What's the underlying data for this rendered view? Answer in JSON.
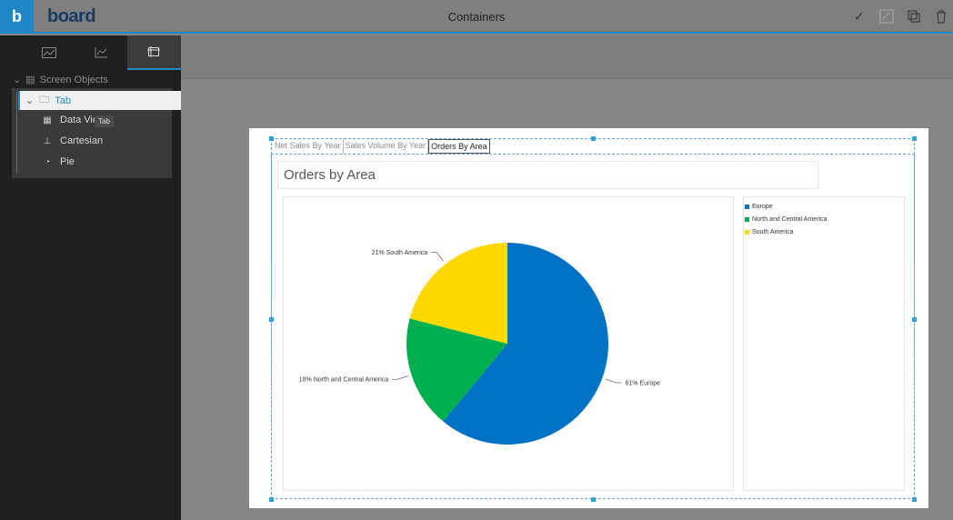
{
  "app": {
    "logo_glyph": "b",
    "brand": "board",
    "title": "Containers"
  },
  "top_actions": [
    "check-icon",
    "edit-grid-icon",
    "copy-icon",
    "trash-icon"
  ],
  "sidebar": {
    "tabs": [
      "layout-icon",
      "chart-layout-icon",
      "container-icon"
    ],
    "tree_root": "Screen Objects",
    "tab_node": "Tab",
    "items": [
      {
        "label": "Data Vie",
        "icon": "table-icon"
      },
      {
        "label": "Cartesian",
        "icon": "axis-icon"
      },
      {
        "label": "Pie",
        "icon": "pie-icon"
      }
    ],
    "tooltip": "Tab"
  },
  "container": {
    "tabs": [
      "Net Sales By Year",
      "Sales Volume By Year",
      "Orders By Area"
    ],
    "active_tab": 2,
    "title": "Orders by Area"
  },
  "chart_data": {
    "type": "pie",
    "categories": [
      "Europe",
      "North and Central America",
      "South America"
    ],
    "values": [
      61,
      18,
      21
    ],
    "colors": [
      "#0072c6",
      "#00b04f",
      "#ffd800"
    ],
    "data_labels": [
      "61% Europe",
      "18% North and Central America",
      "21% South America"
    ],
    "legend": "right"
  }
}
